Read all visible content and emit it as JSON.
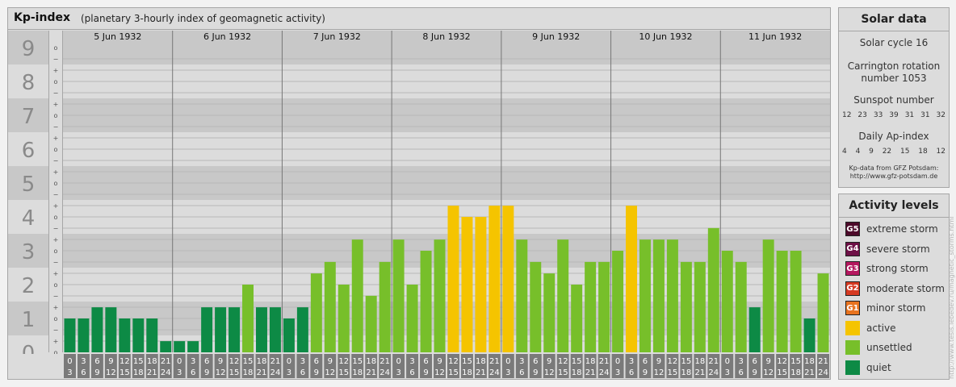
{
  "header": {
    "title": "Kp-index",
    "subtitle": "(planetary 3-hourly index of geomagnetic activity)"
  },
  "solar": {
    "title": "Solar data",
    "cycle": "Solar cycle 16",
    "carrington_line1": "Carrington rotation",
    "carrington_line2": "number 1053",
    "sunspot_label": "Sunspot number",
    "sunspot_values": [
      "12",
      "23",
      "33",
      "39",
      "31",
      "31",
      "32"
    ],
    "ap_label": "Daily Ap-index",
    "ap_values": [
      "4",
      "4",
      "9",
      "22",
      "15",
      "18",
      "12"
    ],
    "credit_line1": "Kp-data from GFZ Potsdam:",
    "credit_line2": "http://www.gfz-potsdam.de"
  },
  "activity": {
    "title": "Activity levels",
    "levels": [
      {
        "badge": "G5",
        "label": "extreme storm",
        "color": "#4d0a2a"
      },
      {
        "badge": "G4",
        "label": "severe storm",
        "color": "#6e1046"
      },
      {
        "badge": "G3",
        "label": "strong storm",
        "color": "#b5175f"
      },
      {
        "badge": "G2",
        "label": "moderate storm",
        "color": "#d63a22"
      },
      {
        "badge": "G1",
        "label": "minor storm",
        "color": "#e8731f"
      },
      {
        "badge": "",
        "label": "active",
        "color": "#f5c400"
      },
      {
        "badge": "",
        "label": "unsettled",
        "color": "#77bf2a"
      },
      {
        "badge": "",
        "label": "quiet",
        "color": "#0d8a45"
      }
    ]
  },
  "watermark": "http://www.tesis.lebedev.ru/magnetic_storms.html",
  "chart_data": {
    "type": "bar",
    "ylim": [
      0,
      9
    ],
    "y_ticks": [
      "0",
      "1",
      "2",
      "3",
      "4",
      "5",
      "6",
      "7",
      "8",
      "9"
    ],
    "minor_marks": [
      "+",
      "o",
      "−"
    ],
    "days": [
      "5 Jun 1932",
      "6 Jun 1932",
      "7 Jun 1932",
      "8 Jun 1932",
      "9 Jun 1932",
      "10 Jun 1932",
      "11 Jun 1932"
    ],
    "interval_start": [
      "0",
      "3",
      "6",
      "9",
      "12",
      "15",
      "18",
      "21"
    ],
    "interval_end": [
      "3",
      "6",
      "9",
      "12",
      "15",
      "18",
      "21",
      "24"
    ],
    "values": [
      1.0,
      1.0,
      1.33,
      1.33,
      1.0,
      1.0,
      1.0,
      0.33,
      0.33,
      0.33,
      1.33,
      1.33,
      1.33,
      2.0,
      1.33,
      1.33,
      1.0,
      1.33,
      2.33,
      2.67,
      2.0,
      3.33,
      1.67,
      2.67,
      3.33,
      2.0,
      3.0,
      3.33,
      4.33,
      4.0,
      4.0,
      4.33,
      4.33,
      3.33,
      2.67,
      2.33,
      3.33,
      2.0,
      2.67,
      2.67,
      3.0,
      4.33,
      3.33,
      3.33,
      3.33,
      2.67,
      2.67,
      3.67,
      3.0,
      2.67,
      1.33,
      3.33,
      3.0,
      3.0,
      1.0,
      2.33
    ],
    "level_colors": {
      "quiet": "#0d8a45",
      "unsettled": "#77bf2a",
      "active": "#f5c400"
    },
    "band_colors": [
      "#c8c8c8",
      "#dcdcdc"
    ],
    "grid": true
  }
}
